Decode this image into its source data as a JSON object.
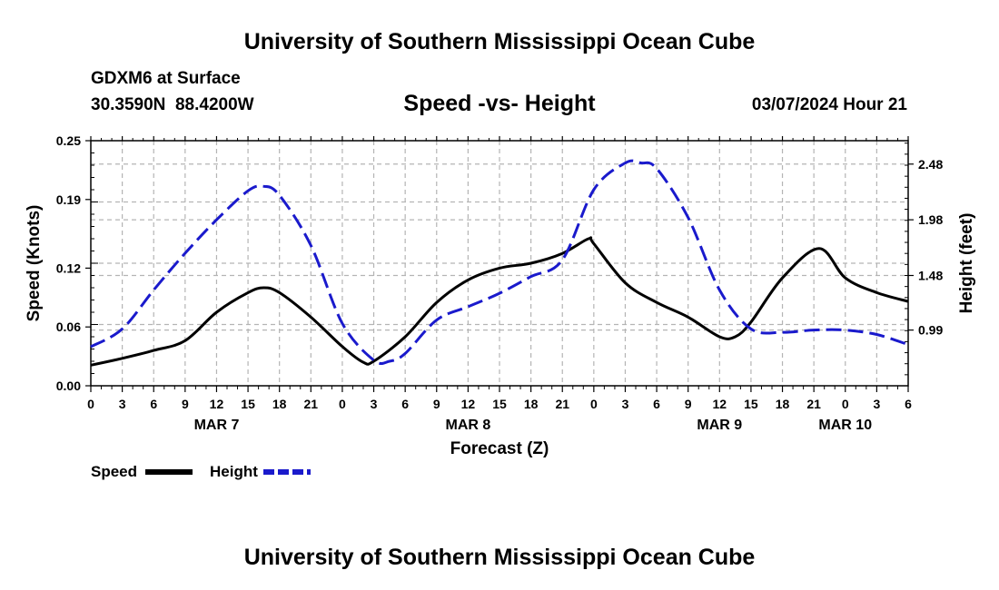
{
  "header": {
    "title": "University of Southern Mississippi Ocean Cube",
    "station": "GDXM6 at Surface",
    "coords": "30.3590N  88.4200W",
    "chart_title": "Speed -vs- Height",
    "issued": "03/07/2024 Hour 21"
  },
  "footer": {
    "title": "University of Southern Mississippi Ocean Cube"
  },
  "legend": {
    "speed_label": "Speed",
    "height_label": "Height"
  },
  "colors": {
    "speed": "#000000",
    "height": "#1a1acc",
    "grid": "#b4b4b4"
  },
  "chart_data": {
    "type": "line",
    "title": "Speed -vs- Height",
    "xlabel": "Forecast (Z)",
    "ylabel": "Speed (Knots)",
    "y2label": "Height (feet)",
    "x_range_hours": [
      0,
      78
    ],
    "x_ticks": [
      0,
      3,
      6,
      9,
      12,
      15,
      18,
      21,
      24,
      27,
      30,
      33,
      36,
      39,
      42,
      45,
      48,
      51,
      54,
      57,
      60,
      63,
      66,
      69,
      72,
      75,
      78
    ],
    "x_tick_labels": [
      "0",
      "3",
      "6",
      "9",
      "12",
      "15",
      "18",
      "21",
      "0",
      "3",
      "6",
      "9",
      "12",
      "15",
      "18",
      "21",
      "0",
      "3",
      "6",
      "9",
      "12",
      "15",
      "18",
      "21",
      "0",
      "3",
      "6"
    ],
    "date_labels": [
      {
        "label": "MAR 7",
        "hour": 12
      },
      {
        "label": "MAR 8",
        "hour": 36
      },
      {
        "label": "MAR 9",
        "hour": 60
      },
      {
        "label": "MAR 10",
        "hour": 72
      }
    ],
    "ylim": [
      0,
      0.25
    ],
    "y_ticks": [
      0,
      0.06,
      0.12,
      0.19,
      0.25
    ],
    "y_tick_labels": [
      "0.00",
      "0.06",
      "0.12",
      "0.19",
      "0.25"
    ],
    "y2lim": [
      0.49,
      2.69
    ],
    "y2_ticks": [
      0.99,
      1.48,
      1.98,
      2.48
    ],
    "y2_tick_labels": [
      "0.99",
      "1.48",
      "1.98",
      "2.48"
    ],
    "series": [
      {
        "name": "Speed",
        "axis": "left",
        "style": "solid",
        "x": [
          0,
          3,
          6,
          9,
          12,
          15,
          16.5,
          18,
          21,
          24,
          26,
          27,
          30,
          33,
          36,
          39,
          42,
          45,
          47.5,
          48,
          51,
          54,
          57,
          60,
          61.5,
          63,
          66,
          69.5,
          72,
          75,
          78
        ],
        "values": [
          0.021,
          0.028,
          0.036,
          0.046,
          0.075,
          0.095,
          0.1,
          0.095,
          0.07,
          0.04,
          0.024,
          0.025,
          0.05,
          0.085,
          0.108,
          0.12,
          0.125,
          0.135,
          0.15,
          0.145,
          0.105,
          0.085,
          0.07,
          0.05,
          0.05,
          0.065,
          0.11,
          0.14,
          0.11,
          0.095,
          0.086
        ]
      },
      {
        "name": "Height",
        "axis": "right",
        "style": "dashed",
        "x": [
          0,
          3,
          6,
          9,
          12,
          15,
          16.5,
          18,
          21,
          24,
          27,
          28.5,
          30,
          33,
          36,
          39,
          42,
          45,
          48,
          51,
          52.5,
          54,
          57,
          60,
          63,
          66,
          69,
          72,
          75,
          78
        ],
        "values": [
          0.84,
          1.0,
          1.35,
          1.68,
          1.98,
          2.24,
          2.28,
          2.2,
          1.75,
          1.05,
          0.72,
          0.71,
          0.78,
          1.08,
          1.2,
          1.32,
          1.47,
          1.62,
          2.25,
          2.49,
          2.49,
          2.44,
          2.0,
          1.35,
          1.0,
          0.97,
          0.99,
          0.99,
          0.95,
          0.86
        ]
      }
    ]
  }
}
